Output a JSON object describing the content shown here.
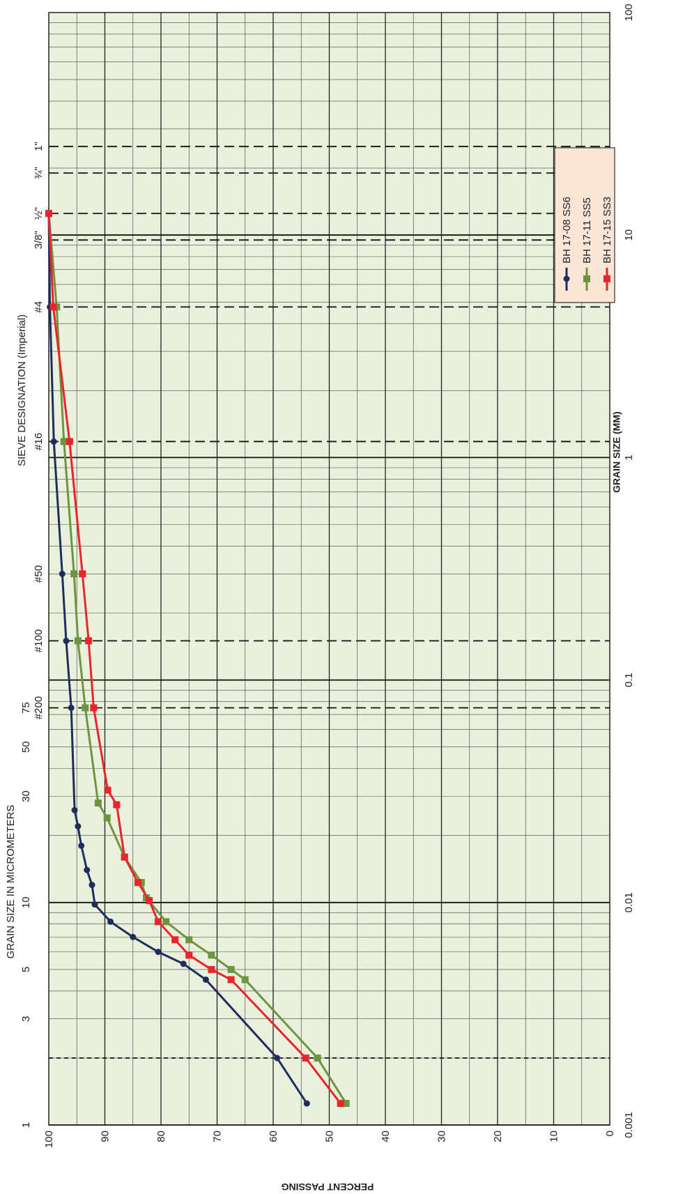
{
  "chart_data": {
    "type": "line",
    "orientation": "rotated-90-clockwise",
    "xlabel": "GRAIN SIZE (MM)",
    "ylabel": "PERCENT PASSING",
    "x_scale": "log",
    "xlim": [
      0.001,
      100
    ],
    "ylim": [
      0,
      100
    ],
    "x_tick_labels": [
      {
        "value": 0.001,
        "label": "0.001"
      },
      {
        "value": 0.01,
        "label": "0.01"
      },
      {
        "value": 0.1,
        "label": "0.1"
      },
      {
        "value": 1,
        "label": "1"
      },
      {
        "value": 10,
        "label": "10"
      },
      {
        "value": 100,
        "label": "100"
      }
    ],
    "y_ticks": [
      0,
      10,
      20,
      30,
      40,
      50,
      60,
      70,
      80,
      90,
      100
    ],
    "grid": true,
    "top_axis_title": "GRAIN SIZE  IN  MICROMETERS",
    "micrometer_ticks": [
      {
        "value": 0.001,
        "label": "1"
      },
      {
        "value": 0.003,
        "label": "3"
      },
      {
        "value": 0.005,
        "label": "5"
      },
      {
        "value": 0.01,
        "label": "10"
      },
      {
        "value": 0.03,
        "label": "30"
      },
      {
        "value": 0.05,
        "label": "50"
      },
      {
        "value": 0.075,
        "label": "75"
      }
    ],
    "sieve_title": "SIEVE  DESIGNATION  (Imperial)",
    "sieves": [
      {
        "value": 0.075,
        "label": "#200"
      },
      {
        "value": 0.15,
        "label": "#100"
      },
      {
        "value": 0.3,
        "label": "#50"
      },
      {
        "value": 1.18,
        "label": "#16"
      },
      {
        "value": 4.75,
        "label": "#4"
      },
      {
        "value": 9.5,
        "label": "3/8\""
      },
      {
        "value": 12.5,
        "label": "½\""
      },
      {
        "value": 19,
        "label": "¾\""
      },
      {
        "value": 25,
        "label": "1\""
      }
    ],
    "dashed_lines": [
      0.002,
      0.075,
      0.15,
      1.18,
      4.75,
      9.5,
      12.5,
      19,
      25
    ],
    "legend_position": "top-right (rotated)",
    "series": [
      {
        "name": "BH 17-08   SS6",
        "color": "#1f2d5c",
        "marker": "circle",
        "x": [
          0.00125,
          0.002,
          0.0045,
          0.0053,
          0.006,
          0.007,
          0.0082,
          0.0098,
          0.012,
          0.014,
          0.018,
          0.022,
          0.026,
          0.075,
          0.15,
          0.3,
          1.18,
          4.75,
          12.5
        ],
        "y": [
          54,
          59.3,
          72,
          76,
          80.5,
          85,
          89,
          91.8,
          92.3,
          93.2,
          94.2,
          94.8,
          95.4,
          96,
          96.9,
          97.6,
          99.1,
          99.8,
          100
        ]
      },
      {
        "name": "BH 17-11   SS5",
        "color": "#6d9440",
        "marker": "square",
        "x": [
          0.00125,
          0.002,
          0.0045,
          0.005,
          0.0058,
          0.0068,
          0.0082,
          0.0105,
          0.0123,
          0.016,
          0.024,
          0.028,
          0.075,
          0.15,
          0.3,
          1.18,
          4.75,
          12.5
        ],
        "y": [
          47,
          52.1,
          65,
          67.5,
          71,
          75,
          79.1,
          82.6,
          83.5,
          86.5,
          89.6,
          91.2,
          93.5,
          94.8,
          95.5,
          97.3,
          98.6,
          100
        ]
      },
      {
        "name": "BH 17-15   SS3",
        "color": "#e8252b",
        "marker": "square",
        "x": [
          0.00125,
          0.002,
          0.0045,
          0.005,
          0.0058,
          0.0068,
          0.0082,
          0.0102,
          0.0123,
          0.016,
          0.0275,
          0.032,
          0.075,
          0.15,
          0.3,
          1.18,
          4.75,
          12.5
        ],
        "y": [
          48,
          54.2,
          67.5,
          71,
          75,
          77.5,
          80.5,
          82.1,
          84.1,
          86.5,
          87.9,
          89.5,
          92,
          92.9,
          94,
          96.3,
          99.2,
          100
        ]
      }
    ]
  }
}
